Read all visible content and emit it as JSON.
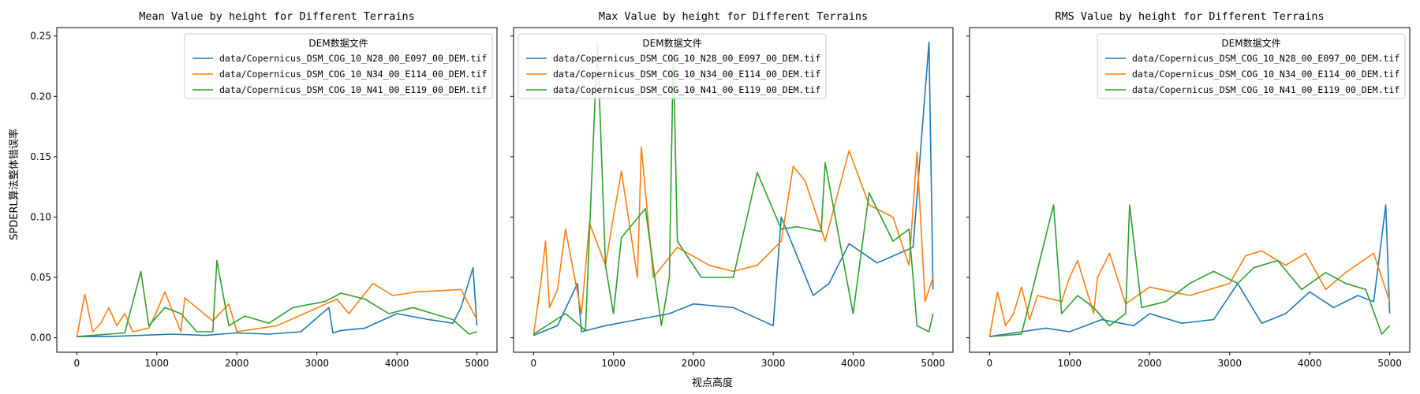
{
  "figure": {
    "xlabel": "视点高度",
    "ylabel": "SPDERL算法整体错误率"
  },
  "colors": {
    "series": [
      "#1f77b4",
      "#ff7f0e",
      "#2ca02c"
    ]
  },
  "chart_data": [
    {
      "type": "line",
      "title": "Mean Value by height for Different Terrains",
      "xticks": [
        0,
        1000,
        2000,
        3000,
        4000,
        5000
      ],
      "yticks": [
        "0.00",
        "0.05",
        "0.10",
        "0.15",
        "0.20",
        "0.25"
      ],
      "xlim": [
        -250,
        5250
      ],
      "ylim": [
        -0.012,
        0.257
      ],
      "legend": {
        "title": "DEM数据文件",
        "placement": "upper right"
      },
      "series": [
        {
          "name": "data/Copernicus_DSM_COG_10_N28_00_E097_00_DEM.tif",
          "x": [
            0,
            400,
            800,
            1200,
            1600,
            2000,
            2400,
            2800,
            3150,
            3200,
            3300,
            3600,
            4000,
            4400,
            4700,
            4800,
            4950,
            5000
          ],
          "y": [
            0.001,
            0.001,
            0.002,
            0.003,
            0.002,
            0.004,
            0.003,
            0.005,
            0.025,
            0.004,
            0.006,
            0.008,
            0.02,
            0.015,
            0.012,
            0.025,
            0.058,
            0.01
          ]
        },
        {
          "name": "data/Copernicus_DSM_COG_10_N34_00_E114_00_DEM.tif",
          "x": [
            0,
            100,
            200,
            300,
            400,
            500,
            600,
            700,
            900,
            1000,
            1100,
            1300,
            1350,
            1700,
            1900,
            2000,
            2500,
            3250,
            3400,
            3700,
            3950,
            4250,
            4800,
            5000
          ],
          "y": [
            0.001,
            0.036,
            0.005,
            0.012,
            0.025,
            0.01,
            0.02,
            0.005,
            0.008,
            0.022,
            0.038,
            0.005,
            0.033,
            0.014,
            0.028,
            0.005,
            0.01,
            0.032,
            0.02,
            0.045,
            0.035,
            0.038,
            0.04,
            0.015
          ]
        },
        {
          "name": "data/Copernicus_DSM_COG_10_N41_00_E119_00_DEM.tif",
          "x": [
            0,
            200,
            400,
            600,
            800,
            900,
            1100,
            1300,
            1500,
            1700,
            1750,
            1900,
            2100,
            2400,
            2700,
            3100,
            3300,
            3600,
            3900,
            4200,
            4450,
            4700,
            4900,
            5000
          ],
          "y": [
            0.001,
            0.002,
            0.003,
            0.004,
            0.055,
            0.01,
            0.025,
            0.02,
            0.005,
            0.005,
            0.064,
            0.01,
            0.018,
            0.012,
            0.025,
            0.03,
            0.037,
            0.032,
            0.02,
            0.025,
            0.02,
            0.015,
            0.003,
            0.005
          ]
        }
      ]
    },
    {
      "type": "line",
      "title": "Max Value by height for Different Terrains",
      "xticks": [
        0,
        1000,
        2000,
        3000,
        4000,
        5000
      ],
      "yticks": [
        "0.00",
        "0.05",
        "0.10",
        "0.15",
        "0.20",
        "0.25"
      ],
      "xlim": [
        -250,
        5250
      ],
      "ylim": [
        -0.012,
        0.257
      ],
      "legend": {
        "title": "DEM数据文件",
        "placement": "upper left"
      },
      "series": [
        {
          "name": "data/Copernicus_DSM_COG_10_N28_00_E097_00_DEM.tif",
          "x": [
            0,
            300,
            550,
            600,
            900,
            1300,
            1700,
            2000,
            2500,
            3000,
            3100,
            3500,
            3700,
            3950,
            4300,
            4750,
            4950,
            5000
          ],
          "y": [
            0.002,
            0.01,
            0.045,
            0.005,
            0.01,
            0.015,
            0.02,
            0.028,
            0.025,
            0.01,
            0.1,
            0.035,
            0.045,
            0.078,
            0.062,
            0.075,
            0.245,
            0.04
          ]
        },
        {
          "name": "data/Copernicus_DSM_COG_10_N34_00_E114_00_DEM.tif",
          "x": [
            0,
            100,
            150,
            200,
            300,
            400,
            600,
            700,
            900,
            1000,
            1100,
            1300,
            1350,
            1500,
            1800,
            2200,
            2500,
            2800,
            3100,
            3250,
            3400,
            3650,
            3950,
            4200,
            4500,
            4700,
            4800,
            4900,
            5000
          ],
          "y": [
            0.002,
            0.05,
            0.08,
            0.025,
            0.04,
            0.09,
            0.02,
            0.095,
            0.06,
            0.1,
            0.138,
            0.05,
            0.158,
            0.05,
            0.075,
            0.06,
            0.055,
            0.06,
            0.08,
            0.142,
            0.13,
            0.08,
            0.155,
            0.11,
            0.1,
            0.06,
            0.154,
            0.03,
            0.05
          ]
        },
        {
          "name": "data/Copernicus_DSM_COG_10_N41_00_E119_00_DEM.tif",
          "x": [
            0,
            400,
            650,
            800,
            900,
            1000,
            1100,
            1400,
            1600,
            1700,
            1750,
            1800,
            2100,
            2500,
            2800,
            3100,
            3300,
            3600,
            3650,
            4000,
            4200,
            4500,
            4700,
            4800,
            4950,
            5000
          ],
          "y": [
            0.003,
            0.02,
            0.006,
            0.245,
            0.06,
            0.02,
            0.083,
            0.107,
            0.01,
            0.05,
            0.238,
            0.08,
            0.05,
            0.05,
            0.137,
            0.09,
            0.092,
            0.088,
            0.145,
            0.02,
            0.12,
            0.08,
            0.09,
            0.01,
            0.005,
            0.02
          ]
        }
      ]
    },
    {
      "type": "line",
      "title": "RMS Value by height for Different Terrains",
      "xticks": [
        0,
        1000,
        2000,
        3000,
        4000,
        5000
      ],
      "yticks": [
        "0.00",
        "0.05",
        "0.10",
        "0.15",
        "0.20",
        "0.25"
      ],
      "xlim": [
        -250,
        5250
      ],
      "ylim": [
        -0.012,
        0.257
      ],
      "legend": {
        "title": "DEM数据文件",
        "placement": "upper right"
      },
      "series": [
        {
          "name": "data/Copernicus_DSM_COG_10_N28_00_E097_00_DEM.tif",
          "x": [
            0,
            400,
            700,
            1000,
            1400,
            1800,
            2000,
            2400,
            2800,
            3100,
            3400,
            3700,
            4000,
            4300,
            4600,
            4800,
            4950,
            5000
          ],
          "y": [
            0.001,
            0.005,
            0.008,
            0.005,
            0.015,
            0.01,
            0.02,
            0.012,
            0.015,
            0.045,
            0.012,
            0.02,
            0.038,
            0.025,
            0.035,
            0.03,
            0.11,
            0.02
          ]
        },
        {
          "name": "data/Copernicus_DSM_COG_10_N34_00_E114_00_DEM.tif",
          "x": [
            0,
            100,
            200,
            300,
            400,
            500,
            600,
            900,
            1000,
            1100,
            1300,
            1350,
            1500,
            1700,
            2000,
            2500,
            3000,
            3200,
            3400,
            3700,
            3950,
            4200,
            4450,
            4800,
            5000
          ],
          "y": [
            0.001,
            0.038,
            0.01,
            0.02,
            0.042,
            0.015,
            0.035,
            0.03,
            0.05,
            0.064,
            0.02,
            0.05,
            0.07,
            0.028,
            0.042,
            0.035,
            0.045,
            0.068,
            0.072,
            0.06,
            0.07,
            0.04,
            0.054,
            0.07,
            0.03
          ]
        },
        {
          "name": "data/Copernicus_DSM_COG_10_N41_00_E119_00_DEM.tif",
          "x": [
            0,
            400,
            800,
            900,
            1100,
            1300,
            1500,
            1700,
            1750,
            1900,
            2200,
            2500,
            2800,
            3100,
            3300,
            3600,
            3900,
            4200,
            4450,
            4700,
            4900,
            5000
          ],
          "y": [
            0.001,
            0.003,
            0.11,
            0.02,
            0.035,
            0.025,
            0.01,
            0.02,
            0.11,
            0.025,
            0.03,
            0.045,
            0.055,
            0.045,
            0.058,
            0.064,
            0.04,
            0.054,
            0.045,
            0.04,
            0.003,
            0.01
          ]
        }
      ]
    }
  ]
}
